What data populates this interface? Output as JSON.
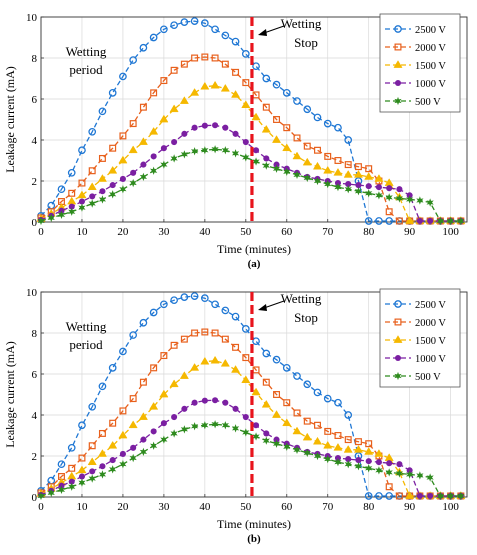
{
  "chart_data": [
    {
      "type": "line",
      "panel_label": "(a)",
      "xlabel": "Time (minutes)",
      "ylabel": "Leakage current (mA)",
      "xlim": [
        0,
        104
      ],
      "ylim": [
        0,
        10
      ],
      "xticks": [
        0,
        10,
        20,
        30,
        40,
        50,
        60,
        70,
        80,
        90,
        100
      ],
      "yticks": [
        0,
        2,
        4,
        6,
        8,
        10
      ],
      "grid": true,
      "legend_position": "top-right",
      "annotations": {
        "wetting_period": [
          "Wetting",
          "period"
        ],
        "wetting_stop": [
          "Wetting",
          "Stop"
        ],
        "wetting_stop_time": 51.5
      },
      "series": [
        {
          "name": "2500 V",
          "color": "#1f77d4",
          "marker": "circle",
          "x": [
            0,
            2.5,
            5,
            7.5,
            10,
            12.5,
            15,
            17.5,
            20,
            22.5,
            25,
            27.5,
            30,
            32.5,
            35,
            37.5,
            40,
            42.5,
            45,
            47.5,
            50,
            52.5,
            55,
            57.5,
            60,
            62.5,
            65,
            67.5,
            70,
            72.5,
            75,
            77.5,
            80,
            82.5,
            85,
            87.5,
            90,
            92.5,
            95,
            97.5,
            100,
            102.5
          ],
          "y": [
            0.3,
            0.8,
            1.6,
            2.4,
            3.5,
            4.4,
            5.4,
            6.3,
            7.1,
            7.9,
            8.5,
            9.0,
            9.4,
            9.6,
            9.75,
            9.8,
            9.7,
            9.4,
            9.1,
            8.8,
            8.2,
            7.6,
            7.0,
            6.7,
            6.3,
            5.9,
            5.5,
            5.1,
            4.8,
            4.6,
            4.0,
            2.0,
            0.05,
            0.05,
            0.05,
            0.05,
            0.05,
            0.05,
            0.05,
            0.05,
            0.05,
            0.05
          ]
        },
        {
          "name": "2000 V",
          "color": "#e8601c",
          "marker": "square",
          "x": [
            0,
            2.5,
            5,
            7.5,
            10,
            12.5,
            15,
            17.5,
            20,
            22.5,
            25,
            27.5,
            30,
            32.5,
            35,
            37.5,
            40,
            42.5,
            45,
            47.5,
            50,
            52.5,
            55,
            57.5,
            60,
            62.5,
            65,
            67.5,
            70,
            72.5,
            75,
            77.5,
            80,
            82.5,
            85,
            87.5,
            90,
            92.5,
            95,
            97.5,
            100,
            102.5
          ],
          "y": [
            0.2,
            0.5,
            1.0,
            1.4,
            1.9,
            2.5,
            3.1,
            3.6,
            4.2,
            4.8,
            5.6,
            6.3,
            6.9,
            7.4,
            7.7,
            8.0,
            8.05,
            8.0,
            7.7,
            7.3,
            6.8,
            6.2,
            5.6,
            5.0,
            4.6,
            4.1,
            3.7,
            3.5,
            3.2,
            3.0,
            2.8,
            2.7,
            2.6,
            2.0,
            0.5,
            0.05,
            0.05,
            0.05,
            0.05,
            0.05,
            0.05,
            0.05
          ]
        },
        {
          "name": "1500 V",
          "color": "#f5b800",
          "marker": "triangle",
          "x": [
            0,
            2.5,
            5,
            7.5,
            10,
            12.5,
            15,
            17.5,
            20,
            22.5,
            25,
            27.5,
            30,
            32.5,
            35,
            37.5,
            40,
            42.5,
            45,
            47.5,
            50,
            52.5,
            55,
            57.5,
            60,
            62.5,
            65,
            67.5,
            70,
            72.5,
            75,
            77.5,
            80,
            82.5,
            85,
            87.5,
            90,
            92.5,
            95,
            97.5,
            100,
            102.5
          ],
          "y": [
            0.15,
            0.4,
            0.7,
            1.0,
            1.3,
            1.7,
            2.1,
            2.5,
            3.0,
            3.5,
            3.9,
            4.4,
            5.0,
            5.5,
            5.9,
            6.3,
            6.6,
            6.65,
            6.5,
            6.2,
            5.7,
            5.1,
            4.5,
            4.0,
            3.6,
            3.2,
            2.9,
            2.7,
            2.5,
            2.4,
            2.3,
            2.3,
            2.2,
            2.1,
            1.9,
            1.2,
            0.05,
            0.05,
            0.05,
            0.05,
            0.05,
            0.05
          ]
        },
        {
          "name": "1000 V",
          "color": "#7b1fa2",
          "marker": "dot",
          "x": [
            0,
            2.5,
            5,
            7.5,
            10,
            12.5,
            15,
            17.5,
            20,
            22.5,
            25,
            27.5,
            30,
            32.5,
            35,
            37.5,
            40,
            42.5,
            45,
            47.5,
            50,
            52.5,
            55,
            57.5,
            60,
            62.5,
            65,
            67.5,
            70,
            72.5,
            75,
            77.5,
            80,
            82.5,
            85,
            87.5,
            90,
            92.5,
            95,
            97.5,
            100,
            102.5
          ],
          "y": [
            0.1,
            0.3,
            0.55,
            0.75,
            1.0,
            1.25,
            1.5,
            1.8,
            2.1,
            2.4,
            2.8,
            3.2,
            3.6,
            3.9,
            4.3,
            4.6,
            4.7,
            4.72,
            4.6,
            4.3,
            3.9,
            3.5,
            3.1,
            2.8,
            2.6,
            2.4,
            2.2,
            2.1,
            2.0,
            1.9,
            1.85,
            1.8,
            1.75,
            1.7,
            1.65,
            1.6,
            1.3,
            0.05,
            0.05,
            0.05,
            0.05,
            0.05
          ]
        },
        {
          "name": "500 V",
          "color": "#2e8b1e",
          "marker": "star",
          "x": [
            0,
            2.5,
            5,
            7.5,
            10,
            12.5,
            15,
            17.5,
            20,
            22.5,
            25,
            27.5,
            30,
            32.5,
            35,
            37.5,
            40,
            42.5,
            45,
            47.5,
            50,
            52.5,
            55,
            57.5,
            60,
            62.5,
            65,
            67.5,
            70,
            72.5,
            75,
            77.5,
            80,
            82.5,
            85,
            87.5,
            90,
            92.5,
            95,
            97.5,
            100,
            102.5
          ],
          "y": [
            0.05,
            0.2,
            0.35,
            0.5,
            0.7,
            0.9,
            1.1,
            1.35,
            1.6,
            1.9,
            2.2,
            2.5,
            2.8,
            3.1,
            3.3,
            3.45,
            3.5,
            3.55,
            3.5,
            3.35,
            3.15,
            2.95,
            2.75,
            2.6,
            2.45,
            2.3,
            2.15,
            2.0,
            1.85,
            1.7,
            1.6,
            1.5,
            1.4,
            1.3,
            1.2,
            1.15,
            1.1,
            1.05,
            0.95,
            0.05,
            0.05,
            0.05
          ]
        }
      ]
    },
    {
      "type": "line",
      "panel_label": "(b)",
      "xlabel": "Time (minutes)",
      "ylabel": "Leakage current (mA)",
      "xlim": [
        0,
        104
      ],
      "ylim": [
        0,
        10
      ],
      "xticks": [
        0,
        10,
        20,
        30,
        40,
        50,
        60,
        70,
        80,
        90,
        100
      ],
      "yticks": [
        0,
        2,
        4,
        6,
        8,
        10
      ],
      "grid": true,
      "legend_position": "top-right",
      "annotations": {
        "wetting_period": [
          "Wetting",
          "period"
        ],
        "wetting_stop": [
          "Wetting",
          "Stop"
        ],
        "wetting_stop_time": 51.5
      },
      "series": [
        {
          "name": "2500 V",
          "color": "#1f77d4",
          "marker": "circle",
          "x": [
            0,
            2.5,
            5,
            7.5,
            10,
            12.5,
            15,
            17.5,
            20,
            22.5,
            25,
            27.5,
            30,
            32.5,
            35,
            37.5,
            40,
            42.5,
            45,
            47.5,
            50,
            52.5,
            55,
            57.5,
            60,
            62.5,
            65,
            67.5,
            70,
            72.5,
            75,
            77.5,
            80,
            82.5,
            85,
            87.5,
            90,
            92.5,
            95,
            97.5,
            100,
            102.5
          ],
          "y": [
            0.3,
            0.8,
            1.6,
            2.4,
            3.5,
            4.4,
            5.4,
            6.3,
            7.1,
            7.9,
            8.5,
            9.0,
            9.4,
            9.6,
            9.75,
            9.8,
            9.7,
            9.4,
            9.1,
            8.8,
            8.2,
            7.6,
            7.0,
            6.7,
            6.3,
            5.9,
            5.5,
            5.1,
            4.8,
            4.6,
            4.0,
            2.0,
            0.05,
            0.05,
            0.05,
            0.05,
            0.05,
            0.05,
            0.05,
            0.05,
            0.05,
            0.05
          ]
        },
        {
          "name": "2000 V",
          "color": "#e8601c",
          "marker": "square",
          "x": [
            0,
            2.5,
            5,
            7.5,
            10,
            12.5,
            15,
            17.5,
            20,
            22.5,
            25,
            27.5,
            30,
            32.5,
            35,
            37.5,
            40,
            42.5,
            45,
            47.5,
            50,
            52.5,
            55,
            57.5,
            60,
            62.5,
            65,
            67.5,
            70,
            72.5,
            75,
            77.5,
            80,
            82.5,
            85,
            87.5,
            90,
            92.5,
            95,
            97.5,
            100,
            102.5
          ],
          "y": [
            0.2,
            0.5,
            1.0,
            1.4,
            1.9,
            2.5,
            3.1,
            3.6,
            4.2,
            4.8,
            5.6,
            6.3,
            6.9,
            7.4,
            7.7,
            8.0,
            8.05,
            8.0,
            7.7,
            7.3,
            6.8,
            6.2,
            5.6,
            5.0,
            4.6,
            4.1,
            3.7,
            3.5,
            3.2,
            3.0,
            2.8,
            2.7,
            2.6,
            2.0,
            0.5,
            0.05,
            0.05,
            0.05,
            0.05,
            0.05,
            0.05,
            0.05
          ]
        },
        {
          "name": "1500 V",
          "color": "#f5b800",
          "marker": "triangle",
          "x": [
            0,
            2.5,
            5,
            7.5,
            10,
            12.5,
            15,
            17.5,
            20,
            22.5,
            25,
            27.5,
            30,
            32.5,
            35,
            37.5,
            40,
            42.5,
            45,
            47.5,
            50,
            52.5,
            55,
            57.5,
            60,
            62.5,
            65,
            67.5,
            70,
            72.5,
            75,
            77.5,
            80,
            82.5,
            85,
            87.5,
            90,
            92.5,
            95,
            97.5,
            100,
            102.5
          ],
          "y": [
            0.15,
            0.4,
            0.7,
            1.0,
            1.3,
            1.7,
            2.1,
            2.5,
            3.0,
            3.5,
            3.9,
            4.4,
            5.0,
            5.5,
            5.9,
            6.3,
            6.6,
            6.65,
            6.5,
            6.2,
            5.7,
            5.1,
            4.5,
            4.0,
            3.6,
            3.2,
            2.9,
            2.7,
            2.5,
            2.4,
            2.3,
            2.3,
            2.2,
            2.1,
            1.9,
            1.2,
            0.05,
            0.05,
            0.05,
            0.05,
            0.05,
            0.05
          ]
        },
        {
          "name": "1000 V",
          "color": "#7b1fa2",
          "marker": "dot",
          "x": [
            0,
            2.5,
            5,
            7.5,
            10,
            12.5,
            15,
            17.5,
            20,
            22.5,
            25,
            27.5,
            30,
            32.5,
            35,
            37.5,
            40,
            42.5,
            45,
            47.5,
            50,
            52.5,
            55,
            57.5,
            60,
            62.5,
            65,
            67.5,
            70,
            72.5,
            75,
            77.5,
            80,
            82.5,
            85,
            87.5,
            90,
            92.5,
            95,
            97.5,
            100,
            102.5
          ],
          "y": [
            0.1,
            0.3,
            0.55,
            0.75,
            1.0,
            1.25,
            1.5,
            1.8,
            2.1,
            2.4,
            2.8,
            3.2,
            3.6,
            3.9,
            4.3,
            4.6,
            4.7,
            4.72,
            4.6,
            4.3,
            3.9,
            3.5,
            3.1,
            2.8,
            2.6,
            2.4,
            2.2,
            2.1,
            2.0,
            1.9,
            1.85,
            1.8,
            1.75,
            1.7,
            1.65,
            1.6,
            1.3,
            0.05,
            0.05,
            0.05,
            0.05,
            0.05
          ]
        },
        {
          "name": "500 V",
          "color": "#2e8b1e",
          "marker": "star",
          "x": [
            0,
            2.5,
            5,
            7.5,
            10,
            12.5,
            15,
            17.5,
            20,
            22.5,
            25,
            27.5,
            30,
            32.5,
            35,
            37.5,
            40,
            42.5,
            45,
            47.5,
            50,
            52.5,
            55,
            57.5,
            60,
            62.5,
            65,
            67.5,
            70,
            72.5,
            75,
            77.5,
            80,
            82.5,
            85,
            87.5,
            90,
            92.5,
            95,
            97.5,
            100,
            102.5
          ],
          "y": [
            0.05,
            0.2,
            0.35,
            0.5,
            0.7,
            0.9,
            1.1,
            1.35,
            1.6,
            1.9,
            2.2,
            2.5,
            2.8,
            3.1,
            3.3,
            3.45,
            3.5,
            3.55,
            3.5,
            3.35,
            3.15,
            2.95,
            2.75,
            2.6,
            2.45,
            2.3,
            2.15,
            2.0,
            1.85,
            1.7,
            1.6,
            1.5,
            1.4,
            1.3,
            1.2,
            1.15,
            1.1,
            1.05,
            0.95,
            0.05,
            0.05,
            0.05
          ]
        }
      ]
    }
  ]
}
